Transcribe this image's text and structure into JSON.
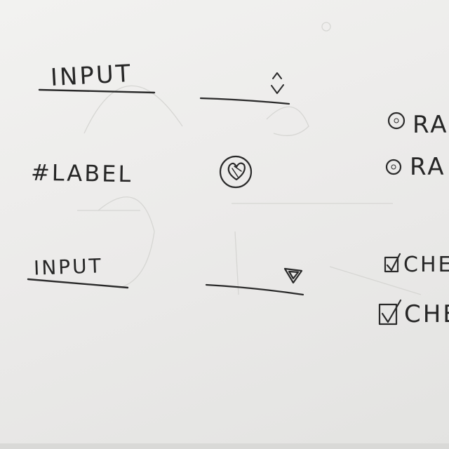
{
  "form_sketch": {
    "row1": {
      "label": "INPUT"
    },
    "row2": {
      "label": "#LABEL"
    },
    "row3": {
      "label": "INPUT"
    },
    "radios": [
      {
        "label": "RA"
      },
      {
        "label": "RA"
      }
    ],
    "checkboxes": [
      {
        "label": "CHE"
      },
      {
        "label": "CHE"
      }
    ]
  }
}
